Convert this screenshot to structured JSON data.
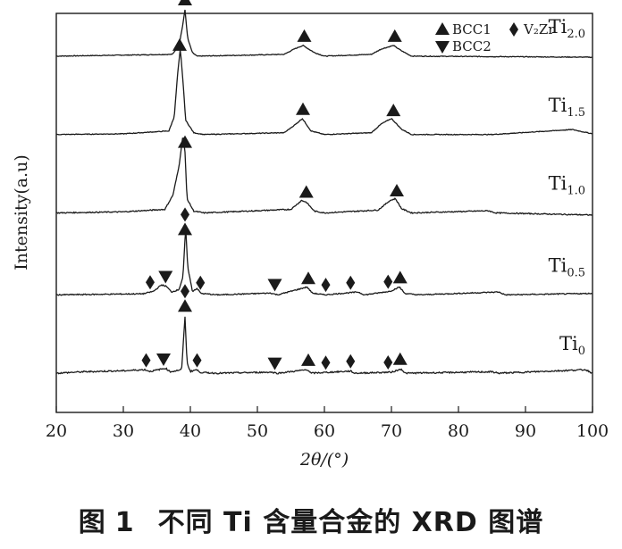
{
  "chart_data": {
    "type": "line",
    "title": "",
    "xlabel": "2θ/(°)",
    "ylabel": "Intensity(a.u)",
    "xlim": [
      20,
      100
    ],
    "x_ticks": [
      "20",
      "30",
      "40",
      "50",
      "60",
      "70",
      "80",
      "90",
      "100"
    ],
    "legend": {
      "placement": "top-right",
      "entries": [
        {
          "name": "BCC1",
          "marker": "triangle-up"
        },
        {
          "name": "V₂Zr",
          "marker": "diamond"
        },
        {
          "name": "BCC2",
          "marker": "triangle-down"
        }
      ]
    },
    "series": [
      {
        "name": "Ti",
        "subscript": "2.0",
        "baseline": 1.0,
        "noise": 0.002,
        "points": [
          [
            20,
            0
          ],
          [
            37.3,
            0.005
          ],
          [
            38.3,
            0.03
          ],
          [
            38.8,
            0.08
          ],
          [
            39.2,
            0.13
          ],
          [
            39.6,
            0.05
          ],
          [
            40.3,
            0.01
          ],
          [
            41,
            0
          ],
          [
            54,
            0.005
          ],
          [
            55.5,
            0.02
          ],
          [
            56.8,
            0.03
          ],
          [
            58.5,
            0.01
          ],
          [
            60,
            0
          ],
          [
            67,
            0.005
          ],
          [
            68.5,
            0.02
          ],
          [
            70.3,
            0.03
          ],
          [
            71.5,
            0.015
          ],
          [
            73,
            0
          ],
          [
            100,
            -0.003
          ]
        ],
        "peaks": [
          {
            "x": 39.2,
            "markers": [
              "triangle-up"
            ]
          },
          {
            "x": 57.0,
            "markers": [
              "triangle-up"
            ]
          },
          {
            "x": 70.5,
            "markers": [
              "triangle-up"
            ]
          }
        ]
      },
      {
        "name": "Ti",
        "subscript": "1.5",
        "baseline": 0.78,
        "noise": 0.002,
        "points": [
          [
            20,
            0
          ],
          [
            30,
            0.002
          ],
          [
            36.8,
            0.01
          ],
          [
            37.6,
            0.05
          ],
          [
            38.1,
            0.17
          ],
          [
            38.5,
            0.24
          ],
          [
            38.9,
            0.15
          ],
          [
            39.3,
            0.04
          ],
          [
            40.5,
            0.005
          ],
          [
            42,
            0
          ],
          [
            54,
            0.005
          ],
          [
            55.8,
            0.03
          ],
          [
            56.7,
            0.045
          ],
          [
            58,
            0.01
          ],
          [
            60,
            0
          ],
          [
            67,
            0.005
          ],
          [
            68.5,
            0.03
          ],
          [
            70.0,
            0.045
          ],
          [
            71.5,
            0.015
          ],
          [
            73,
            0
          ],
          [
            85,
            0
          ],
          [
            97,
            0.014
          ],
          [
            100,
            0.002
          ]
        ],
        "peaks": [
          {
            "x": 38.4,
            "markers": [
              "triangle-up"
            ]
          },
          {
            "x": 56.8,
            "markers": [
              "triangle-up"
            ]
          },
          {
            "x": 70.3,
            "markers": [
              "triangle-up"
            ]
          }
        ]
      },
      {
        "name": "Ti",
        "subscript": "1.0",
        "baseline": 0.56,
        "noise": 0.003,
        "points": [
          [
            20,
            0
          ],
          [
            30,
            0.003
          ],
          [
            36.2,
            0.01
          ],
          [
            37.4,
            0.05
          ],
          [
            38.3,
            0.13
          ],
          [
            38.9,
            0.22
          ],
          [
            39.2,
            0.17
          ],
          [
            39.5,
            0.04
          ],
          [
            40.5,
            0.005
          ],
          [
            42,
            0
          ],
          [
            55,
            0.01
          ],
          [
            56.6,
            0.035
          ],
          [
            57.3,
            0.03
          ],
          [
            58.5,
            0.005
          ],
          [
            60,
            0
          ],
          [
            68,
            0.008
          ],
          [
            69.8,
            0.035
          ],
          [
            70.6,
            0.04
          ],
          [
            71.5,
            0.012
          ],
          [
            73,
            0
          ],
          [
            84.5,
            0.006
          ],
          [
            85.5,
            0
          ],
          [
            100,
            -0.006
          ]
        ],
        "peaks": [
          {
            "x": 39.2,
            "markers": [
              "triangle-up"
            ]
          },
          {
            "x": 57.3,
            "markers": [
              "triangle-up"
            ]
          },
          {
            "x": 70.8,
            "markers": [
              "triangle-up"
            ]
          }
        ]
      },
      {
        "name": "Ti",
        "subscript": "0.5",
        "baseline": 0.33,
        "noise": 0.003,
        "points": [
          [
            20,
            0
          ],
          [
            33,
            0.003
          ],
          [
            34.5,
            0.01
          ],
          [
            35.7,
            0.028
          ],
          [
            36.4,
            0.024
          ],
          [
            37.2,
            0.008
          ],
          [
            38.3,
            0.015
          ],
          [
            38.9,
            0.05
          ],
          [
            39.3,
            0.19
          ],
          [
            39.6,
            0.08
          ],
          [
            40.3,
            0.01
          ],
          [
            41.0,
            0.018
          ],
          [
            41.6,
            0.004
          ],
          [
            44,
            0
          ],
          [
            52,
            0.005
          ],
          [
            53,
            0
          ],
          [
            57.4,
            0.022
          ],
          [
            58.2,
            0.005
          ],
          [
            60,
            0
          ],
          [
            65,
            0.008
          ],
          [
            66,
            0
          ],
          [
            69.8,
            0.01
          ],
          [
            71.2,
            0.022
          ],
          [
            72,
            0.004
          ],
          [
            74,
            0
          ],
          [
            86,
            0.008
          ],
          [
            87,
            0
          ],
          [
            100,
            0.004
          ]
        ],
        "peaks": [
          {
            "x": 34.0,
            "markers": [
              "diamond"
            ]
          },
          {
            "x": 36.3,
            "markers": [
              "triangle-down"
            ]
          },
          {
            "x": 39.2,
            "markers": [
              "triangle-up",
              "diamond"
            ]
          },
          {
            "x": 41.5,
            "markers": [
              "diamond"
            ]
          },
          {
            "x": 52.6,
            "markers": [
              "triangle-down"
            ]
          },
          {
            "x": 57.6,
            "markers": [
              "triangle-up"
            ]
          },
          {
            "x": 60.2,
            "markers": [
              "diamond"
            ]
          },
          {
            "x": 63.9,
            "markers": [
              "diamond"
            ]
          },
          {
            "x": 69.5,
            "markers": [
              "diamond"
            ]
          },
          {
            "x": 71.3,
            "markers": [
              "triangle-up"
            ]
          }
        ]
      },
      {
        "name": "Ti",
        "subscript": "0",
        "baseline": 0.11,
        "noise": 0.004,
        "points": [
          [
            20,
            0
          ],
          [
            24,
            0.004
          ],
          [
            30,
            0.007
          ],
          [
            33.2,
            0.01
          ],
          [
            34.0,
            0.005
          ],
          [
            36.3,
            0.014
          ],
          [
            37,
            0.004
          ],
          [
            38.7,
            0.01
          ],
          [
            39.2,
            0.16
          ],
          [
            39.5,
            0.03
          ],
          [
            40,
            0.005
          ],
          [
            40.9,
            0.01
          ],
          [
            41.6,
            0.002
          ],
          [
            44,
            0
          ],
          [
            52,
            0.003
          ],
          [
            53,
            0
          ],
          [
            57.5,
            0.01
          ],
          [
            58,
            0
          ],
          [
            63.9,
            0.006
          ],
          [
            64.5,
            0
          ],
          [
            70,
            0.003
          ],
          [
            71.5,
            0.012
          ],
          [
            72,
            0
          ],
          [
            85,
            0.004
          ],
          [
            86,
            0
          ],
          [
            99,
            0.01
          ],
          [
            100,
            0
          ]
        ],
        "peaks": [
          {
            "x": 33.4,
            "markers": [
              "diamond"
            ]
          },
          {
            "x": 36.0,
            "markers": [
              "triangle-down"
            ]
          },
          {
            "x": 39.2,
            "markers": [
              "triangle-up",
              "diamond"
            ]
          },
          {
            "x": 41.0,
            "markers": [
              "diamond"
            ]
          },
          {
            "x": 52.6,
            "markers": [
              "triangle-down"
            ]
          },
          {
            "x": 57.6,
            "markers": [
              "triangle-up"
            ]
          },
          {
            "x": 60.2,
            "markers": [
              "diamond"
            ]
          },
          {
            "x": 63.9,
            "markers": [
              "diamond"
            ]
          },
          {
            "x": 69.5,
            "markers": [
              "diamond"
            ]
          },
          {
            "x": 71.3,
            "markers": [
              "triangle-up"
            ]
          }
        ]
      }
    ]
  },
  "caption": {
    "prefix": "图",
    "number": "1",
    "text": "不同 Ti 含量合金的 XRD 图谱"
  },
  "colors": {
    "line": "#1a1a1a",
    "marker": "#1a1a1a",
    "background": "#ffffff"
  }
}
